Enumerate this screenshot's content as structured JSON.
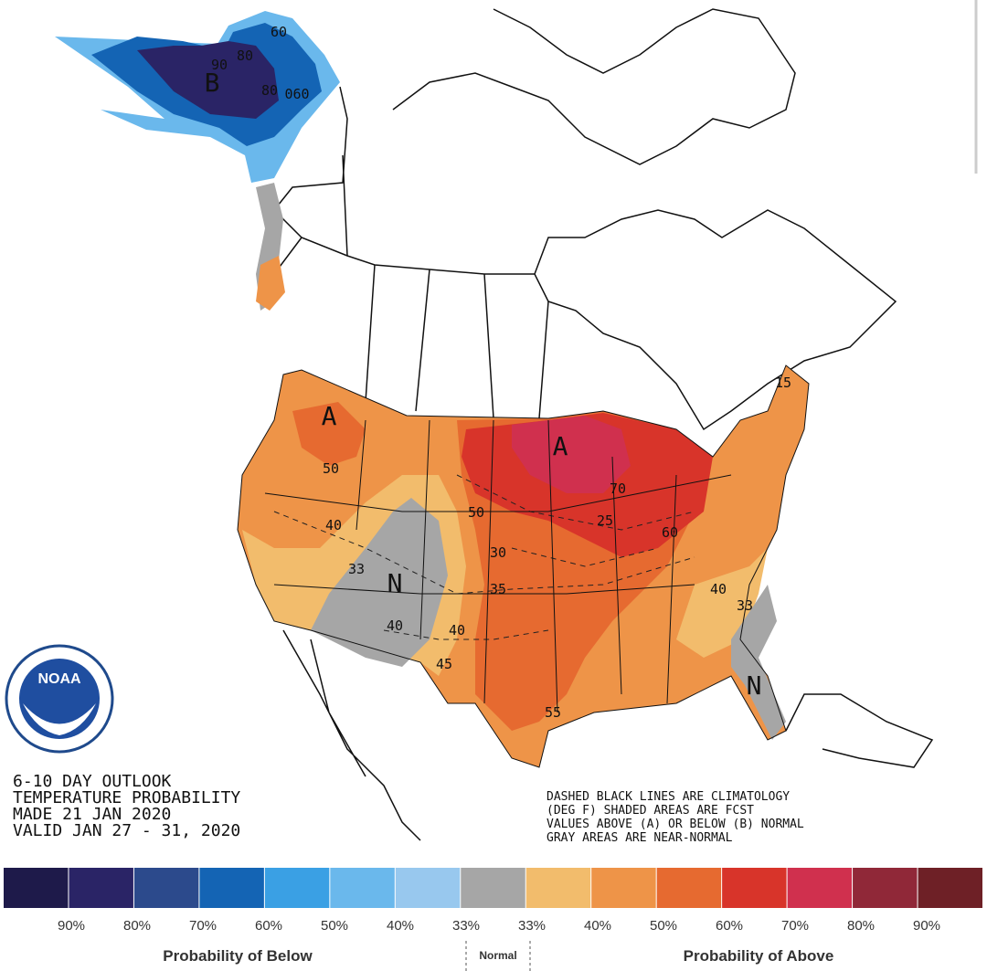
{
  "logo": "NOAA",
  "title_lines": [
    "6-10 DAY OUTLOOK",
    "TEMPERATURE PROBABILITY",
    "MADE  21 JAN 2020",
    "VALID   JAN 27 - 31, 2020"
  ],
  "note_lines": [
    "DASHED BLACK LINES ARE CLIMATOLOGY",
    "(DEG F) SHADED AREAS ARE FCST",
    "VALUES ABOVE (A) OR BELOW (B) NORMAL",
    "GRAY AREAS ARE NEAR-NORMAL"
  ],
  "map_labels": [
    "B",
    "60",
    "80",
    "90",
    "80",
    "060",
    "A",
    "50",
    "40",
    "33",
    "N",
    "40",
    "40",
    "45",
    "50",
    "30",
    "35",
    "A",
    "70",
    "25",
    "60",
    "40",
    "33",
    "15",
    "N",
    "55"
  ],
  "legend": {
    "colors": [
      "#1e1a4a",
      "#2a2466",
      "#2c4a8c",
      "#1464b4",
      "#3aa0e4",
      "#6ab8ec",
      "#98c8ee",
      "#a6a6a6",
      "#f2bc6c",
      "#ee9448",
      "#e66a30",
      "#d8342a",
      "#d0304e",
      "#902838",
      "#6e2026"
    ],
    "ticks": [
      "90%",
      "80%",
      "70%",
      "60%",
      "50%",
      "40%",
      "33%",
      "33%",
      "40%",
      "50%",
      "60%",
      "70%",
      "80%",
      "90%"
    ],
    "below_label": "Probability of Below",
    "normal_label": "Normal",
    "above_label": "Probability of Above"
  }
}
